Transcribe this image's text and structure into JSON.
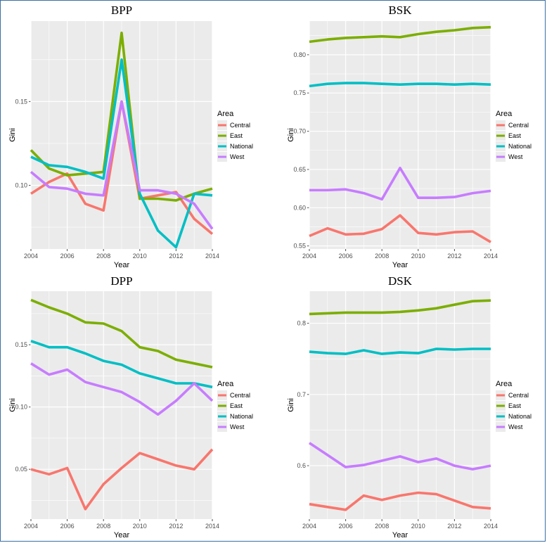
{
  "chart_data": [
    {
      "type": "line",
      "title": "BPP",
      "xlabel": "Year",
      "ylabel": "Gini",
      "x": [
        2004,
        2005,
        2006,
        2007,
        2008,
        2009,
        2010,
        2011,
        2012,
        2013,
        2014
      ],
      "xlim": [
        2004,
        2014
      ],
      "ylim": [
        0.062,
        0.198
      ],
      "xticks": [
        "2004",
        "2006",
        "2008",
        "2010",
        "2012",
        "2014"
      ],
      "yticks": [
        "0.10",
        "0.15"
      ],
      "legend_title": "Area",
      "series": [
        {
          "name": "Central",
          "color": "#F8766D",
          "values": [
            0.095,
            0.102,
            0.107,
            0.089,
            0.085,
            0.15,
            0.092,
            0.094,
            0.096,
            0.08,
            0.071
          ]
        },
        {
          "name": "East",
          "color": "#7CAE00",
          "values": [
            0.121,
            0.11,
            0.106,
            0.107,
            0.108,
            0.191,
            0.092,
            0.092,
            0.091,
            0.095,
            0.098
          ]
        },
        {
          "name": "National",
          "color": "#00BFC4",
          "values": [
            0.117,
            0.112,
            0.111,
            0.108,
            0.104,
            0.175,
            0.095,
            0.073,
            0.063,
            0.095,
            0.094
          ]
        },
        {
          "name": "West",
          "color": "#C77CFF",
          "values": [
            0.108,
            0.099,
            0.098,
            0.095,
            0.094,
            0.15,
            0.097,
            0.097,
            0.095,
            0.089,
            0.074
          ]
        }
      ]
    },
    {
      "type": "line",
      "title": "BSK",
      "xlabel": "Year",
      "ylabel": "Gini",
      "x": [
        2004,
        2005,
        2006,
        2007,
        2008,
        2009,
        2010,
        2011,
        2012,
        2013,
        2014
      ],
      "xlim": [
        2004,
        2014
      ],
      "ylim": [
        0.546,
        0.844
      ],
      "xticks": [
        "2004",
        "2006",
        "2008",
        "2010",
        "2012",
        "2014"
      ],
      "yticks": [
        "0.55",
        "0.60",
        "0.65",
        "0.70",
        "0.75",
        "0.80"
      ],
      "legend_title": "Area",
      "series": [
        {
          "name": "Central",
          "color": "#F8766D",
          "values": [
            0.563,
            0.573,
            0.565,
            0.566,
            0.572,
            0.59,
            0.567,
            0.565,
            0.568,
            0.569,
            0.555
          ]
        },
        {
          "name": "East",
          "color": "#7CAE00",
          "values": [
            0.817,
            0.82,
            0.822,
            0.823,
            0.824,
            0.823,
            0.827,
            0.83,
            0.832,
            0.835,
            0.836
          ]
        },
        {
          "name": "National",
          "color": "#00BFC4",
          "values": [
            0.759,
            0.762,
            0.763,
            0.763,
            0.762,
            0.761,
            0.762,
            0.762,
            0.761,
            0.762,
            0.761
          ]
        },
        {
          "name": "West",
          "color": "#C77CFF",
          "values": [
            0.623,
            0.623,
            0.624,
            0.619,
            0.611,
            0.652,
            0.613,
            0.613,
            0.614,
            0.619,
            0.622
          ]
        }
      ]
    },
    {
      "type": "line",
      "title": "DPP",
      "xlabel": "Year",
      "ylabel": "Gini",
      "x": [
        2004,
        2005,
        2006,
        2007,
        2008,
        2009,
        2010,
        2011,
        2012,
        2013,
        2014
      ],
      "xlim": [
        2004,
        2014
      ],
      "ylim": [
        0.01,
        0.193
      ],
      "xticks": [
        "2004",
        "2006",
        "2008",
        "2010",
        "2012",
        "2014"
      ],
      "yticks": [
        "0.05",
        "0.10",
        "0.15"
      ],
      "legend_title": "Area",
      "series": [
        {
          "name": "Central",
          "color": "#F8766D",
          "values": [
            0.05,
            0.046,
            0.051,
            0.018,
            0.038,
            0.051,
            0.063,
            0.058,
            0.053,
            0.05,
            0.066
          ]
        },
        {
          "name": "East",
          "color": "#7CAE00",
          "values": [
            0.186,
            0.18,
            0.175,
            0.168,
            0.167,
            0.161,
            0.148,
            0.145,
            0.138,
            0.135,
            0.132
          ]
        },
        {
          "name": "National",
          "color": "#00BFC4",
          "values": [
            0.153,
            0.148,
            0.148,
            0.143,
            0.137,
            0.134,
            0.127,
            0.123,
            0.119,
            0.119,
            0.116
          ]
        },
        {
          "name": "West",
          "color": "#C77CFF",
          "values": [
            0.135,
            0.126,
            0.13,
            0.12,
            0.116,
            0.112,
            0.104,
            0.094,
            0.105,
            0.119,
            0.105
          ]
        }
      ]
    },
    {
      "type": "line",
      "title": "DSK",
      "xlabel": "Year",
      "ylabel": "Gini",
      "x": [
        2004,
        2005,
        2006,
        2007,
        2008,
        2009,
        2010,
        2011,
        2012,
        2013,
        2014
      ],
      "xlim": [
        2004,
        2014
      ],
      "ylim": [
        0.525,
        0.845
      ],
      "xticks": [
        "2004",
        "2006",
        "2008",
        "2010",
        "2012",
        "2014"
      ],
      "yticks": [
        "0.6",
        "0.7",
        "0.8"
      ],
      "legend_title": "Area",
      "series": [
        {
          "name": "Central",
          "color": "#F8766D",
          "values": [
            0.546,
            0.542,
            0.538,
            0.558,
            0.552,
            0.558,
            0.562,
            0.56,
            0.551,
            0.542,
            0.54
          ]
        },
        {
          "name": "East",
          "color": "#7CAE00",
          "values": [
            0.813,
            0.814,
            0.815,
            0.815,
            0.815,
            0.816,
            0.818,
            0.821,
            0.826,
            0.831,
            0.832
          ]
        },
        {
          "name": "National",
          "color": "#00BFC4",
          "values": [
            0.76,
            0.758,
            0.757,
            0.762,
            0.757,
            0.759,
            0.758,
            0.764,
            0.763,
            0.764,
            0.764
          ]
        },
        {
          "name": "West",
          "color": "#C77CFF",
          "values": [
            0.632,
            0.615,
            0.598,
            0.601,
            0.607,
            0.613,
            0.605,
            0.61,
            0.6,
            0.595,
            0.6
          ]
        }
      ]
    }
  ]
}
